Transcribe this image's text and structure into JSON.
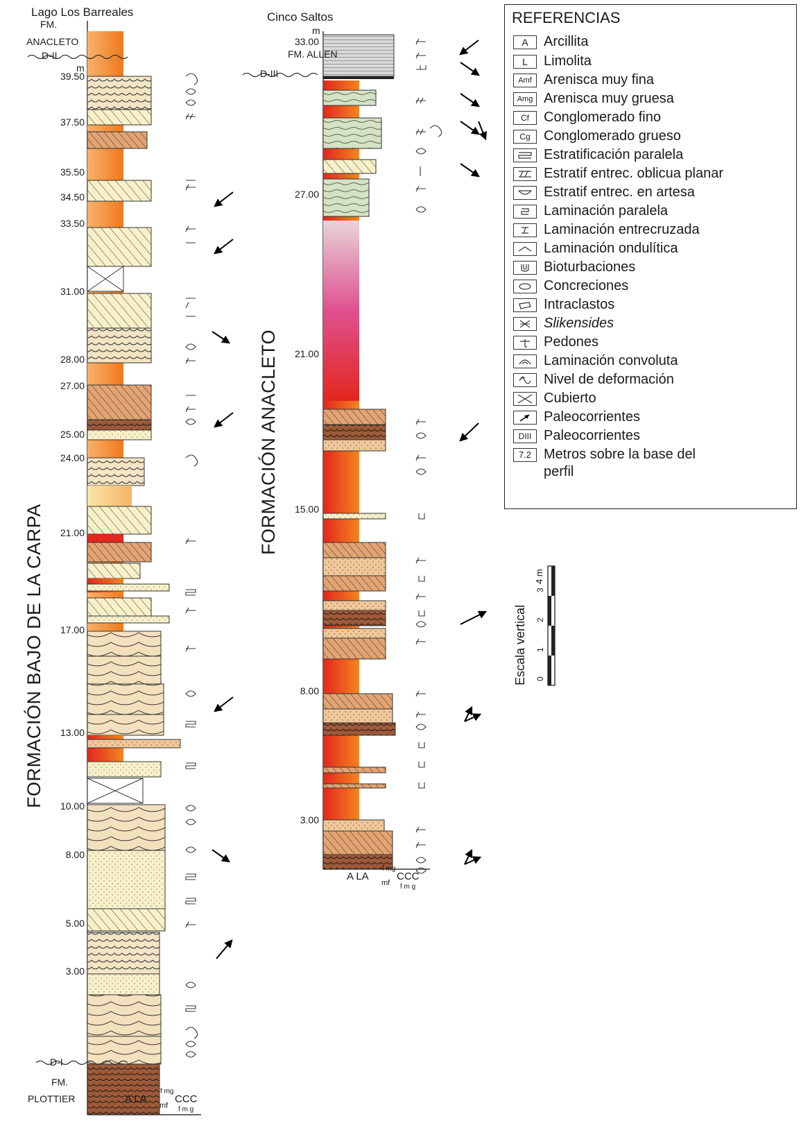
{
  "left_column": {
    "locality": "Lago Los Barreales",
    "top_unit": "FM.\nANACLETO",
    "top_unit_line1": "FM.",
    "top_unit_line2": "ANACLETO",
    "top_surface": "D-II",
    "unit_label": "m",
    "base_surface": "D-I",
    "base_unit_line1": "FM.",
    "base_unit_line2": "PLOTTIER",
    "formation_name": "FORMACIÓN BAJO DE LA CARPA",
    "grain_axis": "A LA",
    "grain_axis_mf": "mf",
    "grain_axis_fmg": "f mg",
    "grain_axis_ccc": "CCC",
    "grain_axis_fmg2": "f m g",
    "ticks": [
      "39.50",
      "37.50",
      "35.50",
      "34.50",
      "33.50",
      "31.00",
      "28.00",
      "27.00",
      "25.00",
      "24.00",
      "21.00",
      "17.00",
      "13.00",
      "10.00",
      "8.00",
      "5.00",
      "3.00"
    ]
  },
  "right_column": {
    "locality": "Cinco Saltos",
    "unit_label": "m",
    "top_unit_line1": "FM. ALLEN",
    "top_surface": "D-III",
    "formation_name": "FORMACIÓN ANACLETO",
    "grain_axis": "A LA",
    "grain_axis_mf": "mf",
    "grain_axis_fmg": "f mg",
    "grain_axis_ccc": "CCC",
    "grain_axis_fmg2": "f m g",
    "ticks": [
      "33.00",
      "27.00",
      "21.00",
      "15.00",
      "8.00",
      "3.00"
    ]
  },
  "scale_bar": {
    "label": "Escala vertical",
    "unit": "4 m",
    "values": [
      "0",
      "1",
      "2",
      "3"
    ]
  },
  "legend": {
    "title": "REFERENCIAS",
    "items": [
      {
        "key": "A",
        "text": "Arcillita"
      },
      {
        "key": "L",
        "text": "Limolita"
      },
      {
        "key": "Amf",
        "text": "Arenisca muy fina"
      },
      {
        "key": "Amg",
        "text": "Arenisca muy gruesa"
      },
      {
        "key": "Cf",
        "text": "Conglomerado fino"
      },
      {
        "key": "Cg",
        "text": "Conglomerado grueso"
      },
      {
        "key": "parallel-strat-icon",
        "text": "Estratificación paralela"
      },
      {
        "key": "planar-cross-icon",
        "text": "Estratif entrec. oblicua planar"
      },
      {
        "key": "trough-cross-icon",
        "text": "Estratif entrec. en artesa"
      },
      {
        "key": "parallel-lam-icon",
        "text": "Laminación paralela"
      },
      {
        "key": "cross-lam-icon",
        "text": "Laminación entrecruzada"
      },
      {
        "key": "ripple-lam-icon",
        "text": "Laminación ondulítica"
      },
      {
        "key": "bioturbation-icon",
        "text": "Bioturbaciones"
      },
      {
        "key": "concretion-icon",
        "text": "Concreciones"
      },
      {
        "key": "intraclast-icon",
        "text": "Intraclastos"
      },
      {
        "key": "slickenside-icon",
        "text": "Slikensides",
        "italic": true
      },
      {
        "key": "pedon-icon",
        "text": "Pedones"
      },
      {
        "key": "convolute-icon",
        "text": "Laminación convoluta"
      },
      {
        "key": "deformation-icon",
        "text": "Nivel de deformación"
      },
      {
        "key": "covered-icon",
        "text": "Cubierto"
      },
      {
        "key": "paleocurrent-icon",
        "text": "Paleocorrientes"
      },
      {
        "key": "DIII",
        "text": "Paleocorrientes"
      },
      {
        "key": "7.2",
        "text": "Metros sobre la base del"
      },
      {
        "key": "",
        "text": "perfil"
      }
    ]
  },
  "colors": {
    "clay_red": "#e8362b",
    "orange": "#f07a1f",
    "pale_yellow": "#f8f1c8",
    "tan": "#e8c49a",
    "brown": "#a8623a",
    "green_gray": "#c9d8be",
    "gray": "#c8c8c8"
  }
}
